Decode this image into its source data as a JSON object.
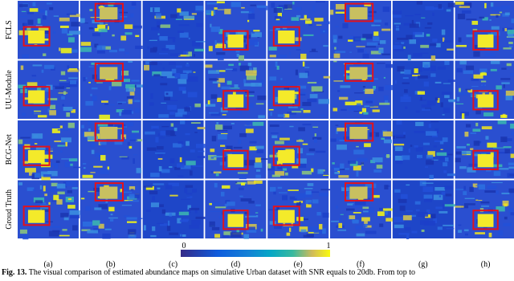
{
  "figure": {
    "rows": [
      "FCLS",
      "UU-Module",
      "BCG-Net",
      "Groud Truth"
    ],
    "columns": [
      "(a)",
      "(b)",
      "(c)",
      "(d)",
      "(e)",
      "(f)",
      "(g)",
      "(h)"
    ],
    "colorbar": {
      "ticks": [
        0,
        1
      ]
    },
    "caption": {
      "label": "Fig. 13.",
      "text": "The visual comparison of estimated abundance maps on simulative Urban dataset with SNR equals to 20db. From top to"
    }
  }
}
